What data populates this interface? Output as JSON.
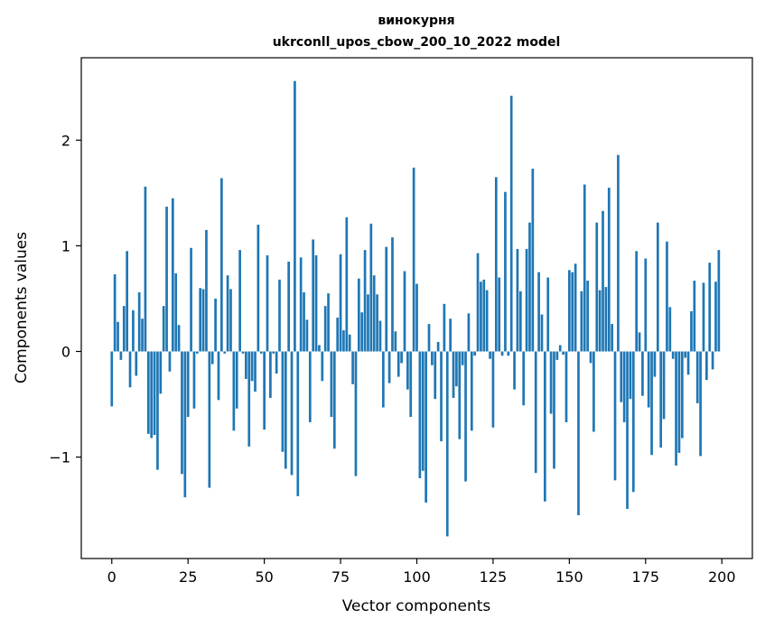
{
  "chart_data": {
    "type": "bar",
    "title": "винокурня",
    "subtitle": "ukrconll_upos_cbow_200_10_2022 model",
    "xlabel": "Vector components",
    "ylabel": "Components values",
    "xlim": [
      -10,
      210
    ],
    "ylim": [
      -1.96,
      2.78
    ],
    "xticks": [
      0,
      25,
      50,
      75,
      100,
      125,
      150,
      175,
      200
    ],
    "yticks": [
      -1,
      0,
      1,
      2
    ],
    "ytick_labels": [
      "−1",
      "0",
      "1",
      "2"
    ],
    "grid": false,
    "bar_color": "#1f77b4",
    "x": [
      0,
      1,
      2,
      3,
      4,
      5,
      6,
      7,
      8,
      9,
      10,
      11,
      12,
      13,
      14,
      15,
      16,
      17,
      18,
      19,
      20,
      21,
      22,
      23,
      24,
      25,
      26,
      27,
      28,
      29,
      30,
      31,
      32,
      33,
      34,
      35,
      36,
      37,
      38,
      39,
      40,
      41,
      42,
      43,
      44,
      45,
      46,
      47,
      48,
      49,
      50,
      51,
      52,
      53,
      54,
      55,
      56,
      57,
      58,
      59,
      60,
      61,
      62,
      63,
      64,
      65,
      66,
      67,
      68,
      69,
      70,
      71,
      72,
      73,
      74,
      75,
      76,
      77,
      78,
      79,
      80,
      81,
      82,
      83,
      84,
      85,
      86,
      87,
      88,
      89,
      90,
      91,
      92,
      93,
      94,
      95,
      96,
      97,
      98,
      99,
      100,
      101,
      102,
      103,
      104,
      105,
      106,
      107,
      108,
      109,
      110,
      111,
      112,
      113,
      114,
      115,
      116,
      117,
      118,
      119,
      120,
      121,
      122,
      123,
      124,
      125,
      126,
      127,
      128,
      129,
      130,
      131,
      132,
      133,
      134,
      135,
      136,
      137,
      138,
      139,
      140,
      141,
      142,
      143,
      144,
      145,
      146,
      147,
      148,
      149,
      150,
      151,
      152,
      153,
      154,
      155,
      156,
      157,
      158,
      159,
      160,
      161,
      162,
      163,
      164,
      165,
      166,
      167,
      168,
      169,
      170,
      171,
      172,
      173,
      174,
      175,
      176,
      177,
      178,
      179,
      180,
      181,
      182,
      183,
      184,
      185,
      186,
      187,
      188,
      189,
      190,
      191,
      192,
      193,
      194,
      195,
      196,
      197,
      198,
      199
    ],
    "values": [
      -0.52,
      0.73,
      0.28,
      -0.08,
      0.43,
      0.95,
      -0.34,
      0.39,
      -0.23,
      0.56,
      0.31,
      1.56,
      -0.78,
      -0.82,
      -0.79,
      -1.12,
      -0.4,
      0.43,
      1.37,
      -0.19,
      1.45,
      0.74,
      0.25,
      -1.16,
      -1.38,
      -0.62,
      0.98,
      -0.54,
      -0.02,
      0.6,
      0.59,
      1.15,
      -1.29,
      -0.12,
      0.5,
      -0.46,
      1.64,
      -0.02,
      0.72,
      0.59,
      -0.75,
      -0.54,
      0.96,
      -0.02,
      -0.26,
      -0.9,
      -0.28,
      -0.38,
      1.2,
      -0.02,
      -0.74,
      0.91,
      -0.44,
      -0.02,
      -0.21,
      0.68,
      -0.95,
      -1.11,
      0.85,
      -1.17,
      2.56,
      -1.37,
      0.89,
      0.56,
      0.3,
      -0.67,
      1.06,
      0.91,
      0.06,
      -0.28,
      0.43,
      0.55,
      -0.62,
      -0.92,
      0.32,
      0.92,
      0.2,
      1.27,
      0.16,
      -0.31,
      -1.18,
      0.69,
      0.37,
      0.96,
      0.54,
      1.21,
      0.72,
      0.54,
      0.29,
      -0.53,
      0.99,
      -0.3,
      1.08,
      0.19,
      -0.24,
      -0.11,
      0.76,
      -0.36,
      -0.62,
      1.74,
      0.64,
      -1.2,
      -1.13,
      -1.43,
      0.26,
      -0.13,
      -0.45,
      0.09,
      -0.85,
      0.45,
      -1.75,
      0.31,
      -0.44,
      -0.33,
      -0.83,
      -0.13,
      -1.23,
      0.36,
      -0.75,
      -0.04,
      0.93,
      0.66,
      0.68,
      0.58,
      -0.07,
      -0.72,
      1.65,
      0.7,
      -0.04,
      1.51,
      -0.04,
      2.42,
      -0.36,
      0.97,
      0.57,
      -0.51,
      0.97,
      1.22,
      1.73,
      -1.15,
      0.75,
      0.35,
      -1.42,
      0.7,
      -0.59,
      -1.11,
      -0.08,
      0.06,
      -0.03,
      -0.67,
      0.77,
      0.75,
      0.83,
      -1.55,
      0.57,
      1.58,
      0.67,
      -0.11,
      -0.76,
      1.22,
      0.58,
      1.33,
      0.61,
      1.55,
      0.26,
      -1.22,
      1.86,
      -0.48,
      -0.67,
      -1.49,
      -0.45,
      -1.33,
      0.95,
      0.18,
      -0.42,
      0.88,
      -0.53,
      -0.98,
      -0.24,
      1.22,
      -0.91,
      -0.64,
      1.04,
      0.42,
      -0.07,
      -1.08,
      -0.96,
      -0.82,
      -0.06,
      -0.22,
      0.38,
      0.67,
      -0.49,
      -0.99,
      0.65,
      -0.27,
      0.84,
      -0.17,
      0.66,
      0.96
    ]
  }
}
